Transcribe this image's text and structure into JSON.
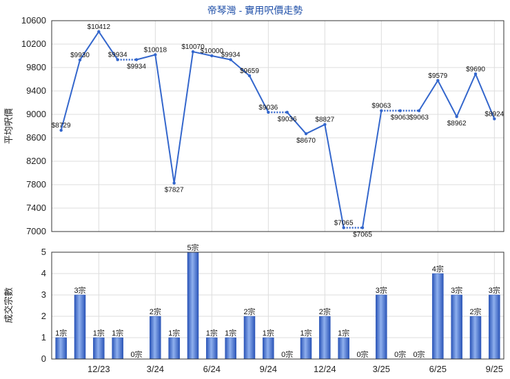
{
  "title": "帝琴灣 - 實用呎價走勢",
  "colors": {
    "line": "#3366cc",
    "bar_light": "#6f92dc",
    "bar_dark": "#2b55b8",
    "grid": "#dddddd",
    "title": "#1f4fa8"
  },
  "chart_data": [
    {
      "type": "line",
      "ylabel": "平均呎價",
      "ylim": [
        7000,
        10600
      ],
      "yticks": [
        7000,
        7400,
        7800,
        8200,
        8600,
        9000,
        9400,
        9800,
        10200,
        10600
      ],
      "grid": true,
      "series": [
        {
          "values": [
            8729,
            9930,
            10412,
            9934,
            9934,
            10018,
            7827,
            10070,
            10000,
            9934,
            9659,
            9036,
            9036,
            8670,
            8827,
            7065,
            7065,
            9063,
            9063,
            9063,
            9579,
            8962,
            9690,
            8924
          ],
          "labels": [
            "$8729",
            "$9930",
            "$10412",
            "$9934",
            "$9934",
            "$10018",
            "$7827",
            "$10070",
            "$10000",
            "$9934",
            "$9659",
            "$9036",
            "$9036",
            "$8670",
            "$8827",
            "$7065",
            "$7065",
            "$9063",
            "$9063",
            "$9063",
            "$9579",
            "$8962",
            "$9690",
            "$8924"
          ],
          "segments": [
            "solid",
            "solid",
            "solid",
            "dotted",
            "solid",
            "solid",
            "solid",
            "solid",
            "solid",
            "solid",
            "solid",
            "dotted",
            "solid",
            "solid",
            "solid",
            "dotted",
            "solid",
            "dotted",
            "dotted",
            "solid",
            "solid",
            "solid",
            "solid"
          ]
        }
      ]
    },
    {
      "type": "bar",
      "ylabel": "成交宗數",
      "ylim": [
        0,
        5
      ],
      "yticks": [
        0,
        1,
        2,
        3,
        4,
        5
      ],
      "grid": true,
      "categories": [
        "",
        "",
        "12/23",
        "",
        "",
        "3/24",
        "",
        "",
        "6/24",
        "",
        "",
        "9/24",
        "",
        "",
        "12/24",
        "",
        "",
        "3/25",
        "",
        "",
        "6/25",
        "",
        "",
        "9/25"
      ],
      "values": [
        1,
        3,
        1,
        1,
        0,
        2,
        1,
        5,
        1,
        1,
        2,
        1,
        0,
        1,
        2,
        1,
        0,
        3,
        0,
        0,
        4,
        3,
        2,
        3
      ],
      "labels": [
        "1宗",
        "3宗",
        "1宗",
        "1宗",
        "0宗",
        "2宗",
        "1宗",
        "5宗",
        "1宗",
        "1宗",
        "2宗",
        "1宗",
        "0宗",
        "1宗",
        "2宗",
        "1宗",
        "0宗",
        "3宗",
        "0宗",
        "0宗",
        "4宗",
        "3宗",
        "2宗",
        "3宗"
      ]
    }
  ]
}
